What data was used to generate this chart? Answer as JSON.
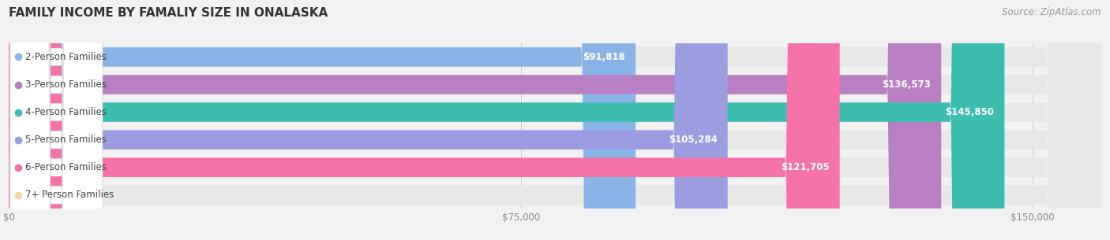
{
  "title": "FAMILY INCOME BY FAMALIY SIZE IN ONALASKA",
  "source": "Source: ZipAtlas.com",
  "categories": [
    "2-Person Families",
    "3-Person Families",
    "4-Person Families",
    "5-Person Families",
    "6-Person Families",
    "7+ Person Families"
  ],
  "values": [
    91818,
    136573,
    145850,
    105284,
    121705,
    0
  ],
  "bar_colors": [
    "#89b4e8",
    "#b87fc4",
    "#3dbcb0",
    "#9b9de0",
    "#f472a8",
    "#f5d5a8"
  ],
  "label_colors": [
    "#ffffff",
    "#ffffff",
    "#ffffff",
    "#ffffff",
    "#ffffff",
    "#888888"
  ],
  "x_max": 160000,
  "x_ticks": [
    0,
    75000,
    150000
  ],
  "x_tick_labels": [
    "$0",
    "$75,000",
    "$150,000"
  ],
  "background_color": "#f2f2f2",
  "bar_background_color": "#e8e8e8",
  "title_fontsize": 11,
  "label_fontsize": 8.5,
  "source_fontsize": 8.5,
  "tick_fontsize": 8.5
}
